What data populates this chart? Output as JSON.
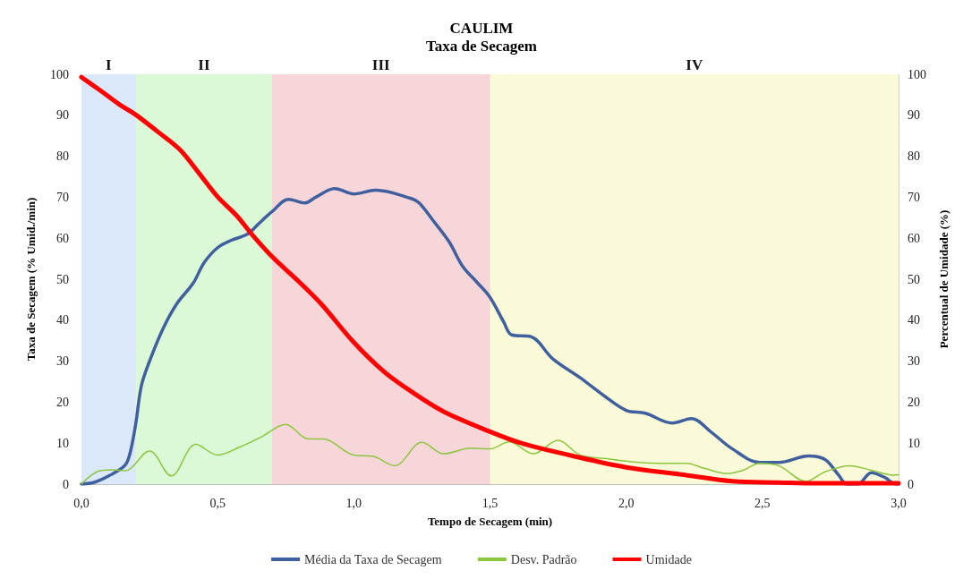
{
  "chart_data": {
    "type": "line",
    "title": "CAULIM",
    "subtitle": "Taxa de Secagem",
    "xlabel": "Tempo de Secagem (min)",
    "ylabel": "Taxa de Secagem (% Umid./min)",
    "y2label": "Percentual de Umidade (%)",
    "xlim": [
      0,
      3
    ],
    "xticks": [
      {
        "value": 0,
        "label": "0,0"
      },
      {
        "value": 0.5,
        "label": "0,5"
      },
      {
        "value": 1,
        "label": "1,0"
      },
      {
        "value": 1.5,
        "label": "1,5"
      },
      {
        "value": 2,
        "label": "2,0"
      },
      {
        "value": 2.5,
        "label": "2,5"
      },
      {
        "value": 3,
        "label": "3,0"
      }
    ],
    "ylim": [
      0,
      100
    ],
    "yticks": [
      0,
      10,
      20,
      30,
      40,
      50,
      60,
      70,
      80,
      90,
      100
    ],
    "y2lim": [
      0,
      100
    ],
    "y2ticks": [
      0,
      10,
      20,
      30,
      40,
      50,
      60,
      70,
      80,
      90,
      100
    ],
    "grid": true,
    "legend": "bottom",
    "marker": "none",
    "line_style": "solid",
    "bands": [
      {
        "axis": "x",
        "from": 0,
        "to": 0.2,
        "label": "I",
        "color": "#dae8fa"
      },
      {
        "axis": "x",
        "from": 0.2,
        "to": 0.7,
        "label": "II",
        "color": "#dbf9d6"
      },
      {
        "axis": "x",
        "from": 0.7,
        "to": 1.5,
        "label": "III",
        "color": "#f6d6d8"
      },
      {
        "axis": "x",
        "from": 1.5,
        "to": 3,
        "label": "IV",
        "color": "#fbfad8"
      }
    ],
    "series": [
      {
        "name": "Média da Taxa de Secagem",
        "color": "#3f5f9f",
        "x": [
          0,
          0.05,
          0.1,
          0.16,
          0.18,
          0.2,
          0.22,
          0.25,
          0.3,
          0.35,
          0.41,
          0.45,
          0.5,
          0.55,
          0.61,
          0.65,
          0.7,
          0.76,
          0.82,
          0.86,
          0.93,
          1.0,
          1.08,
          1.21,
          1.24,
          1.29,
          1.35,
          1.4,
          1.45,
          1.5,
          1.55,
          1.58,
          1.65,
          1.73,
          1.83,
          1.92,
          2.0,
          2.07,
          2.17,
          2.24,
          2.31,
          2.39,
          2.49,
          2.56,
          2.67,
          2.73,
          2.78,
          2.81,
          2.85,
          2.9,
          2.95,
          2.98,
          3.0
        ],
        "values": [
          0,
          0.5,
          2,
          4.6,
          8,
          15,
          24,
          30,
          38,
          44,
          49,
          54,
          57.7,
          59.5,
          61,
          63.5,
          66.5,
          69.5,
          68.6,
          70,
          72.1,
          70.8,
          71.7,
          69.7,
          68.6,
          64.4,
          59.1,
          53.1,
          49.4,
          45.6,
          39.6,
          36.4,
          36,
          30.6,
          26,
          21.5,
          18,
          17.3,
          14.9,
          16,
          12.8,
          8.6,
          5.3,
          5.3,
          6.9,
          6,
          2.2,
          0,
          0,
          2.8,
          1.6,
          0.2,
          0
        ]
      },
      {
        "name": "Desv. Padrão",
        "color": "#8cc63f",
        "x": [
          0,
          0.06,
          0.11,
          0.16,
          0.25,
          0.33,
          0.42,
          0.5,
          0.58,
          0.66,
          0.75,
          0.83,
          0.89,
          1.0,
          1.07,
          1.15,
          1.25,
          1.33,
          1.43,
          1.5,
          1.57,
          1.66,
          1.75,
          1.83,
          1.93,
          2.0,
          2.11,
          2.22,
          2.29,
          2.37,
          2.43,
          2.49,
          2.56,
          2.66,
          2.73,
          2.82,
          2.9,
          2.98,
          3.0
        ],
        "values": [
          0,
          3.1,
          3.5,
          3.3,
          8.1,
          2,
          9.7,
          7.1,
          9,
          11.5,
          14.6,
          11.1,
          11,
          7.1,
          6.8,
          4.5,
          10.2,
          7.4,
          8.8,
          8.6,
          10.3,
          7.4,
          10.7,
          7.1,
          6.2,
          5.6,
          5.1,
          5.1,
          3.8,
          2.6,
          3.4,
          5.1,
          4.5,
          0.7,
          3,
          4.5,
          3.4,
          2.2,
          2.3
        ]
      },
      {
        "name": "Umidade",
        "color": "#ff0000",
        "axis": "y2",
        "x": [
          0,
          0.07,
          0.14,
          0.2,
          0.28,
          0.36,
          0.43,
          0.5,
          0.57,
          0.63,
          0.7,
          0.8,
          0.88,
          1.0,
          1.11,
          1.22,
          1.33,
          1.5,
          1.62,
          1.79,
          2.0,
          2.22,
          2.39,
          2.56,
          2.7,
          3.0
        ],
        "values": [
          99.3,
          96,
          92.6,
          90.1,
          86,
          81.7,
          76,
          70.1,
          65.5,
          60.6,
          55.5,
          49.3,
          44,
          34.6,
          27.5,
          22.2,
          17.7,
          12.8,
          9.9,
          7.1,
          4.1,
          2.2,
          0.7,
          0.4,
          0.2,
          0.2
        ]
      }
    ]
  }
}
